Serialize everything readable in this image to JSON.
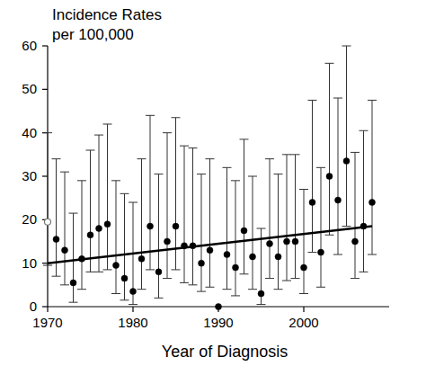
{
  "chart_data": {
    "type": "scatter",
    "title": [
      "Incidence Rates",
      "per 100,000"
    ],
    "xlabel": "Year of Diagnosis",
    "xlim": [
      1970,
      2010
    ],
    "xticks": [
      1970,
      1980,
      1990,
      2000
    ],
    "ylim": [
      0,
      60
    ],
    "yticks": [
      0,
      10,
      20,
      30,
      40,
      50,
      60
    ],
    "grid": false,
    "series": [
      {
        "type": "scatter",
        "marker": "open-circle",
        "color": "#777777",
        "x": [
          1970
        ],
        "values": [
          19.5
        ],
        "lower": [
          9.5
        ],
        "upper": [
          40
        ]
      },
      {
        "type": "scatter",
        "marker": "circle",
        "color": "#000000",
        "x": [
          1971,
          1972,
          1973,
          1974,
          1975,
          1976,
          1977,
          1978,
          1979,
          1980,
          1981,
          1982,
          1983,
          1984,
          1985,
          1986,
          1987,
          1988,
          1989,
          1990,
          1991,
          1992,
          1993,
          1994,
          1995,
          1996,
          1997,
          1998,
          1999,
          2000,
          2001,
          2002,
          2003,
          2004,
          2005,
          2006,
          2007,
          2008
        ],
        "values": [
          15.5,
          13,
          5.5,
          11,
          16.5,
          18,
          19,
          9.5,
          6.5,
          3.5,
          11,
          18.5,
          8,
          15,
          18.5,
          14,
          14,
          10,
          13,
          0,
          12,
          9,
          17.5,
          11.5,
          3,
          14.5,
          11.5,
          15,
          15,
          9,
          24,
          12.5,
          30,
          24.5,
          33.5,
          15,
          18.5,
          24
        ],
        "lower": [
          7,
          5,
          1,
          4,
          8,
          8,
          8.5,
          3,
          1.5,
          0.5,
          4,
          8.5,
          2,
          6.5,
          8.5,
          5.5,
          5,
          3.5,
          4.5,
          0,
          4,
          2.5,
          7.5,
          4,
          0.5,
          6.5,
          4,
          6,
          6.5,
          3,
          12.5,
          4.5,
          16.5,
          12,
          18.5,
          6.5,
          8,
          12
        ],
        "upper": [
          34,
          31,
          21.5,
          29,
          36,
          39.5,
          42,
          29,
          26,
          24,
          34,
          44,
          30.5,
          40,
          43.5,
          37,
          36.5,
          30.5,
          34,
          0,
          32,
          29,
          38.5,
          30,
          18,
          34,
          30.5,
          35,
          35,
          27,
          47.5,
          32,
          56,
          48,
          60,
          35.5,
          40.5,
          47.5
        ]
      },
      {
        "type": "line",
        "line_style": "solid",
        "color": "#000000",
        "x": [
          1970,
          2008
        ],
        "values": [
          10,
          18.5
        ]
      }
    ]
  }
}
